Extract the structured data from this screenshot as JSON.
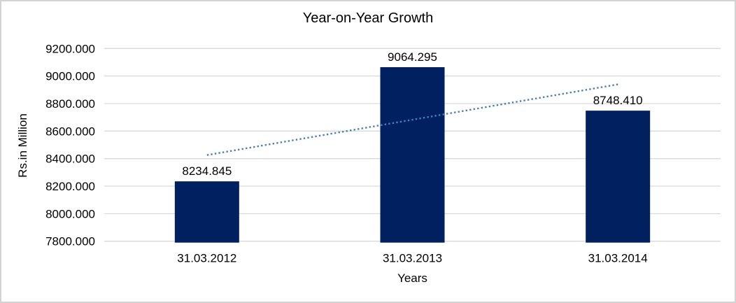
{
  "chart_data": {
    "type": "bar",
    "title": "Year-on-Year Growth",
    "xlabel": "Years",
    "ylabel": "Rs.in Million",
    "categories": [
      "31.03.2012",
      "31.03.2013",
      "31.03.2014"
    ],
    "values": [
      8234.845,
      9064.295,
      8748.41
    ],
    "data_labels": [
      "8234.845",
      "9064.295",
      "8748.410"
    ],
    "ylim": [
      7800,
      9200
    ],
    "ytick_step": 200,
    "ytick_labels": [
      "7800.000",
      "8000.000",
      "8200.000",
      "8400.000",
      "8600.000",
      "8800.000",
      "9000.000",
      "9200.000"
    ],
    "tick_decimals": 3,
    "grid": true,
    "legend": "none",
    "bar_color": "#002060",
    "trendline": {
      "type": "linear",
      "style": "dotted",
      "color": "#4A7EBB"
    },
    "gridline_color": "#D9D9D9",
    "axis_line_color": "#D9D9D9",
    "text_color": "#000000",
    "frame_border_color": "#D3D3D3",
    "background": "#FFFFFF"
  }
}
